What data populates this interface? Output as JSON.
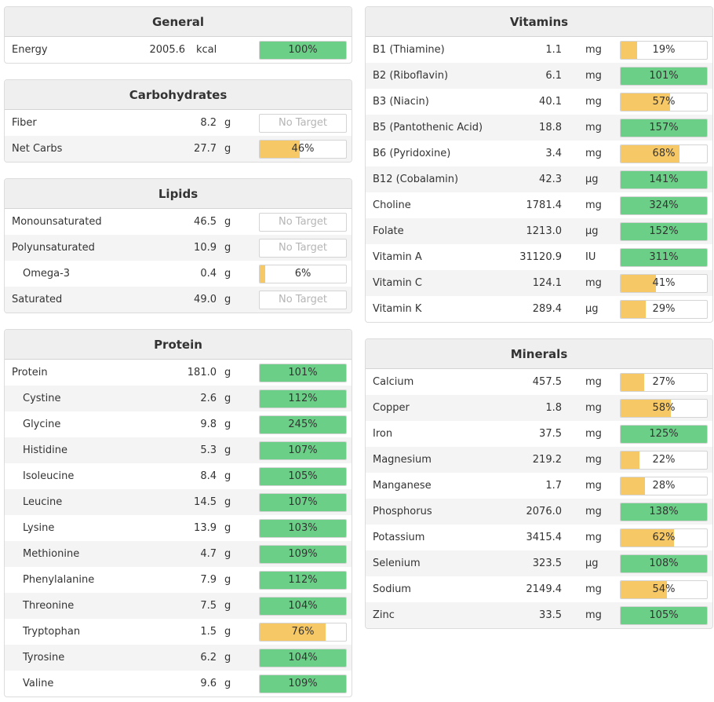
{
  "colors": {
    "green": "#6ccf87",
    "yellow": "#f6c866",
    "header_bg": "#efefef"
  },
  "general": {
    "title": "General",
    "rows": [
      {
        "name": "Energy",
        "amount": "2005.6",
        "unit": "kcal",
        "pct": 100,
        "label": "100%",
        "status": "green"
      }
    ]
  },
  "carbohydrates": {
    "title": "Carbohydrates",
    "rows": [
      {
        "name": "Fiber",
        "amount": "8.2",
        "unit": "g",
        "pct": 0,
        "label": "No Target",
        "status": "none"
      },
      {
        "name": "Net Carbs",
        "amount": "27.7",
        "unit": "g",
        "pct": 46,
        "label": "46%",
        "status": "yellow"
      }
    ]
  },
  "lipids": {
    "title": "Lipids",
    "rows": [
      {
        "name": "Monounsaturated",
        "amount": "46.5",
        "unit": "g",
        "pct": 0,
        "label": "No Target",
        "status": "none"
      },
      {
        "name": "Polyunsaturated",
        "amount": "10.9",
        "unit": "g",
        "pct": 0,
        "label": "No Target",
        "status": "none"
      },
      {
        "name": "Omega-3",
        "amount": "0.4",
        "unit": "g",
        "pct": 6,
        "label": "6%",
        "status": "yellow",
        "indent": true
      },
      {
        "name": "Saturated",
        "amount": "49.0",
        "unit": "g",
        "pct": 0,
        "label": "No Target",
        "status": "none"
      }
    ]
  },
  "protein": {
    "title": "Protein",
    "rows": [
      {
        "name": "Protein",
        "amount": "181.0",
        "unit": "g",
        "pct": 101,
        "label": "101%",
        "status": "green"
      },
      {
        "name": "Cystine",
        "amount": "2.6",
        "unit": "g",
        "pct": 112,
        "label": "112%",
        "status": "green",
        "indent": true
      },
      {
        "name": "Glycine",
        "amount": "9.8",
        "unit": "g",
        "pct": 245,
        "label": "245%",
        "status": "green",
        "indent": true
      },
      {
        "name": "Histidine",
        "amount": "5.3",
        "unit": "g",
        "pct": 107,
        "label": "107%",
        "status": "green",
        "indent": true
      },
      {
        "name": "Isoleucine",
        "amount": "8.4",
        "unit": "g",
        "pct": 105,
        "label": "105%",
        "status": "green",
        "indent": true
      },
      {
        "name": "Leucine",
        "amount": "14.5",
        "unit": "g",
        "pct": 107,
        "label": "107%",
        "status": "green",
        "indent": true
      },
      {
        "name": "Lysine",
        "amount": "13.9",
        "unit": "g",
        "pct": 103,
        "label": "103%",
        "status": "green",
        "indent": true
      },
      {
        "name": "Methionine",
        "amount": "4.7",
        "unit": "g",
        "pct": 109,
        "label": "109%",
        "status": "green",
        "indent": true
      },
      {
        "name": "Phenylalanine",
        "amount": "7.9",
        "unit": "g",
        "pct": 112,
        "label": "112%",
        "status": "green",
        "indent": true
      },
      {
        "name": "Threonine",
        "amount": "7.5",
        "unit": "g",
        "pct": 104,
        "label": "104%",
        "status": "green",
        "indent": true
      },
      {
        "name": "Tryptophan",
        "amount": "1.5",
        "unit": "g",
        "pct": 76,
        "label": "76%",
        "status": "yellow",
        "indent": true
      },
      {
        "name": "Tyrosine",
        "amount": "6.2",
        "unit": "g",
        "pct": 104,
        "label": "104%",
        "status": "green",
        "indent": true
      },
      {
        "name": "Valine",
        "amount": "9.6",
        "unit": "g",
        "pct": 109,
        "label": "109%",
        "status": "green",
        "indent": true
      }
    ]
  },
  "vitamins": {
    "title": "Vitamins",
    "rows": [
      {
        "name": "B1 (Thiamine)",
        "amount": "1.1",
        "unit": "mg",
        "pct": 19,
        "label": "19%",
        "status": "yellow"
      },
      {
        "name": "B2 (Riboflavin)",
        "amount": "6.1",
        "unit": "mg",
        "pct": 101,
        "label": "101%",
        "status": "green"
      },
      {
        "name": "B3 (Niacin)",
        "amount": "40.1",
        "unit": "mg",
        "pct": 57,
        "label": "57%",
        "status": "yellow"
      },
      {
        "name": "B5 (Pantothenic Acid)",
        "amount": "18.8",
        "unit": "mg",
        "pct": 157,
        "label": "157%",
        "status": "green"
      },
      {
        "name": "B6 (Pyridoxine)",
        "amount": "3.4",
        "unit": "mg",
        "pct": 68,
        "label": "68%",
        "status": "yellow"
      },
      {
        "name": "B12 (Cobalamin)",
        "amount": "42.3",
        "unit": "µg",
        "pct": 141,
        "label": "141%",
        "status": "green"
      },
      {
        "name": "Choline",
        "amount": "1781.4",
        "unit": "mg",
        "pct": 324,
        "label": "324%",
        "status": "green"
      },
      {
        "name": "Folate",
        "amount": "1213.0",
        "unit": "µg",
        "pct": 152,
        "label": "152%",
        "status": "green"
      },
      {
        "name": "Vitamin A",
        "amount": "31120.9",
        "unit": "IU",
        "pct": 311,
        "label": "311%",
        "status": "green"
      },
      {
        "name": "Vitamin C",
        "amount": "124.1",
        "unit": "mg",
        "pct": 41,
        "label": "41%",
        "status": "yellow"
      },
      {
        "name": "Vitamin K",
        "amount": "289.4",
        "unit": "µg",
        "pct": 29,
        "label": "29%",
        "status": "yellow"
      }
    ]
  },
  "minerals": {
    "title": "Minerals",
    "rows": [
      {
        "name": "Calcium",
        "amount": "457.5",
        "unit": "mg",
        "pct": 27,
        "label": "27%",
        "status": "yellow"
      },
      {
        "name": "Copper",
        "amount": "1.8",
        "unit": "mg",
        "pct": 58,
        "label": "58%",
        "status": "yellow"
      },
      {
        "name": "Iron",
        "amount": "37.5",
        "unit": "mg",
        "pct": 125,
        "label": "125%",
        "status": "green"
      },
      {
        "name": "Magnesium",
        "amount": "219.2",
        "unit": "mg",
        "pct": 22,
        "label": "22%",
        "status": "yellow"
      },
      {
        "name": "Manganese",
        "amount": "1.7",
        "unit": "mg",
        "pct": 28,
        "label": "28%",
        "status": "yellow"
      },
      {
        "name": "Phosphorus",
        "amount": "2076.0",
        "unit": "mg",
        "pct": 138,
        "label": "138%",
        "status": "green"
      },
      {
        "name": "Potassium",
        "amount": "3415.4",
        "unit": "mg",
        "pct": 62,
        "label": "62%",
        "status": "yellow"
      },
      {
        "name": "Selenium",
        "amount": "323.5",
        "unit": "µg",
        "pct": 108,
        "label": "108%",
        "status": "green"
      },
      {
        "name": "Sodium",
        "amount": "2149.4",
        "unit": "mg",
        "pct": 54,
        "label": "54%",
        "status": "yellow"
      },
      {
        "name": "Zinc",
        "amount": "33.5",
        "unit": "mg",
        "pct": 105,
        "label": "105%",
        "status": "green"
      }
    ]
  }
}
